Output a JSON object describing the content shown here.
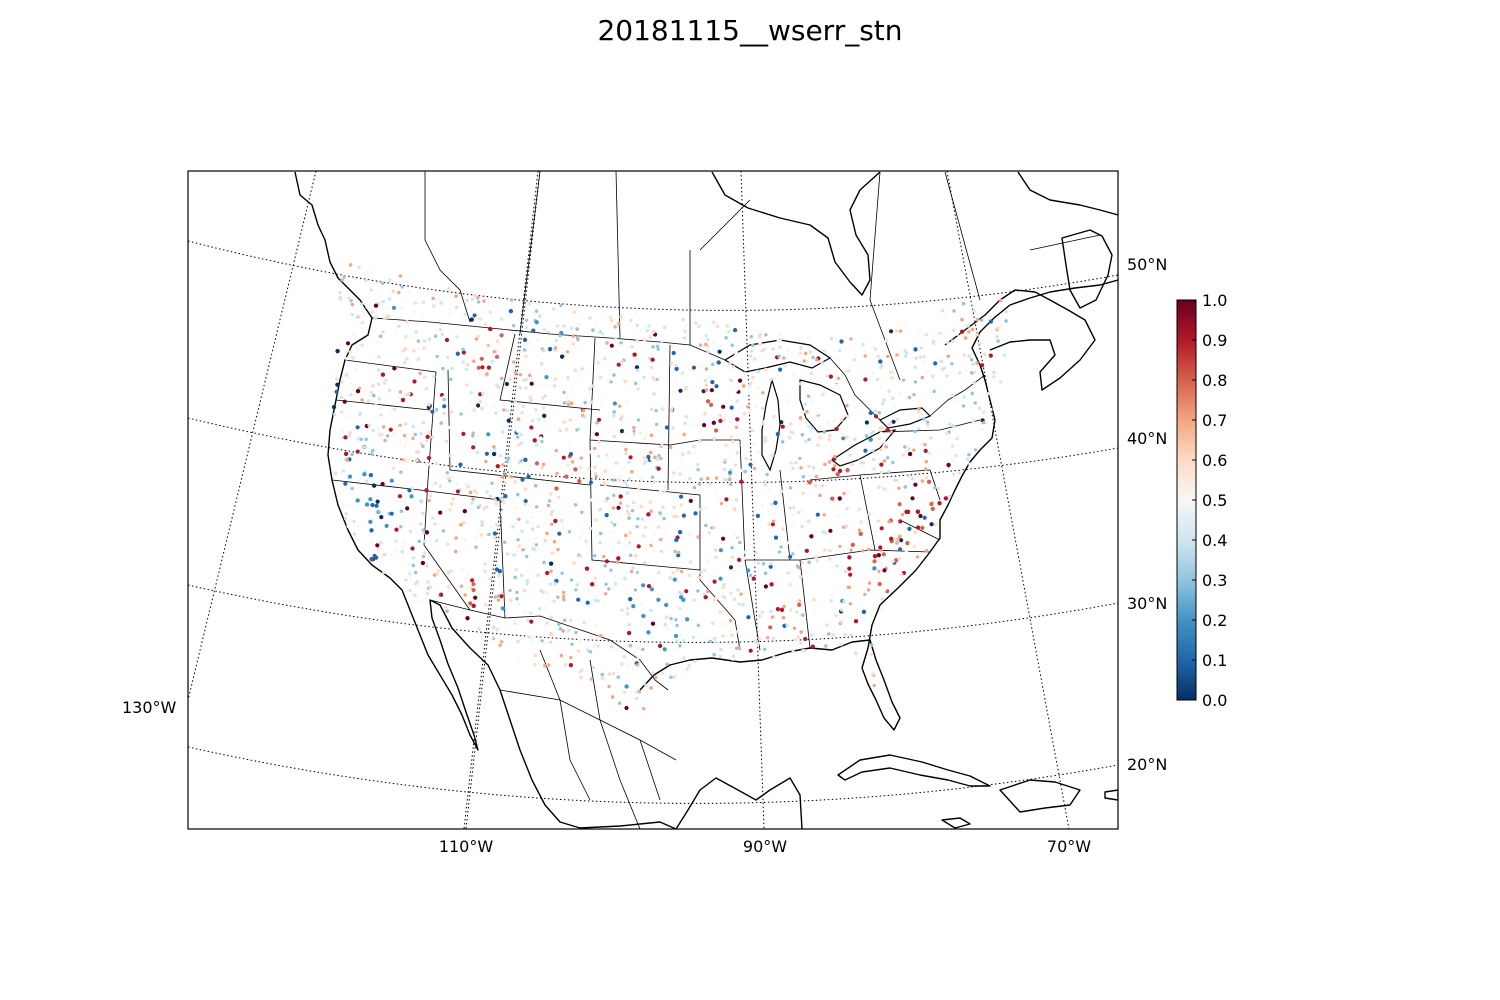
{
  "title": "20181115__wserr_stn",
  "map": {
    "lat_labels": [
      "50°N",
      "40°N",
      "30°N",
      "20°N"
    ],
    "lon_labels": [
      "130°W",
      "110°W",
      "90°W",
      "70°W"
    ]
  },
  "colorbar": {
    "ticks": [
      "0.0",
      "0.1",
      "0.2",
      "0.3",
      "0.4",
      "0.5",
      "0.6",
      "0.7",
      "0.8",
      "0.9",
      "1.0"
    ],
    "colormap": [
      "#053061",
      "#2166ac",
      "#4393c3",
      "#92c5de",
      "#d1e5f0",
      "#f7f7f7",
      "#fddbc7",
      "#f4a582",
      "#d6604d",
      "#b2182b",
      "#67001f"
    ]
  }
}
